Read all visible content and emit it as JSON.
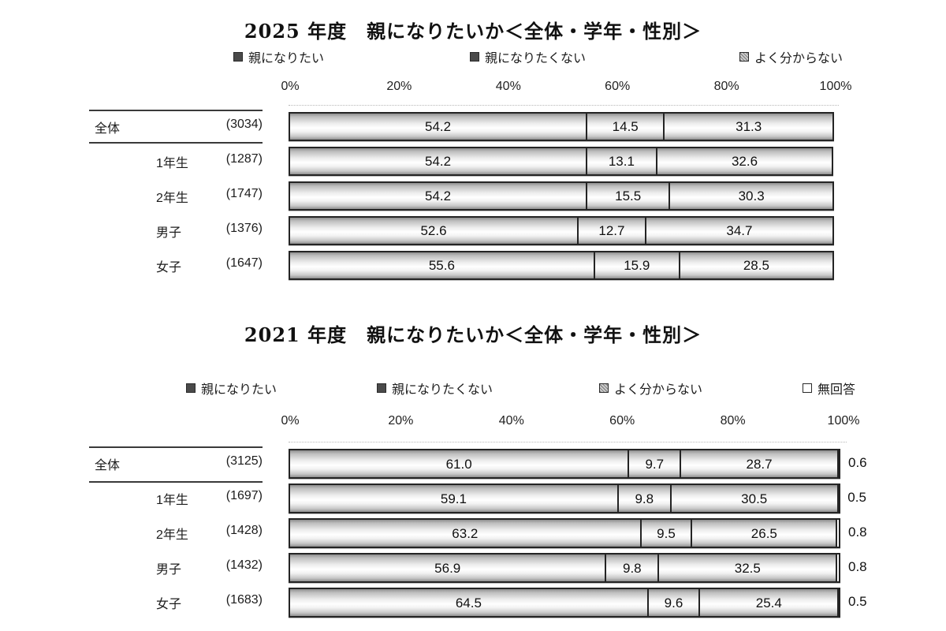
{
  "page": {
    "background": "#ffffff",
    "text_color": "#1a1a1a",
    "bar_border_color": "#242424",
    "swatch_dark_color": "#4a4a4a",
    "swatch_gray_color": "#b5b5b5",
    "swatch_white_color": "#ffffff"
  },
  "chart_data": [
    {
      "type": "bar",
      "stacked": true,
      "orientation": "horizontal",
      "title": "2025 年度　親になりたいか＜全体・学年・性別＞",
      "categories": [
        "全体",
        "1年生",
        "2年生",
        "男子",
        "女子"
      ],
      "counts": [
        3034,
        1287,
        1747,
        1376,
        1647
      ],
      "count_labels": [
        "(3034)",
        "(1287)",
        "(1747)",
        "(1376)",
        "(1647)"
      ],
      "series": [
        {
          "name": "親になりたい",
          "swatch": "dark",
          "values": [
            54.2,
            54.2,
            54.2,
            52.6,
            55.6
          ]
        },
        {
          "name": "親になりたくない",
          "swatch": "dark",
          "values": [
            14.5,
            13.1,
            15.5,
            12.7,
            15.9
          ]
        },
        {
          "name": "よく分からない",
          "swatch": "hatch",
          "values": [
            31.3,
            32.6,
            30.3,
            34.7,
            28.5
          ]
        }
      ],
      "xlim": [
        0,
        100
      ],
      "ticks": [
        "0%",
        "20%",
        "40%",
        "60%",
        "80%",
        "100%"
      ],
      "legend_position": "top",
      "grid": false,
      "value_labels": "inside"
    },
    {
      "type": "bar",
      "stacked": true,
      "orientation": "horizontal",
      "title": "2021 年度　親になりたいか＜全体・学年・性別＞",
      "categories": [
        "全体",
        "1年生",
        "2年生",
        "男子",
        "女子"
      ],
      "counts": [
        3125,
        1697,
        1428,
        1432,
        1683
      ],
      "count_labels": [
        "(3125)",
        "(1697)",
        "(1428)",
        "(1432)",
        "(1683)"
      ],
      "series": [
        {
          "name": "親になりたい",
          "swatch": "dark",
          "values": [
            61.0,
            59.1,
            63.2,
            56.9,
            64.5
          ]
        },
        {
          "name": "親になりたくない",
          "swatch": "dark",
          "values": [
            9.7,
            9.8,
            9.5,
            9.8,
            9.6
          ]
        },
        {
          "name": "よく分からない",
          "swatch": "hatch",
          "values": [
            28.7,
            30.5,
            26.5,
            32.5,
            25.4
          ]
        },
        {
          "name": "無回答",
          "swatch": "white",
          "values": [
            0.6,
            0.5,
            0.8,
            0.8,
            0.5
          ],
          "label_outside": true
        }
      ],
      "xlim": [
        0,
        100
      ],
      "ticks": [
        "0%",
        "20%",
        "40%",
        "60%",
        "80%",
        "100%"
      ],
      "legend_position": "top",
      "grid": false,
      "value_labels": "inside"
    }
  ]
}
